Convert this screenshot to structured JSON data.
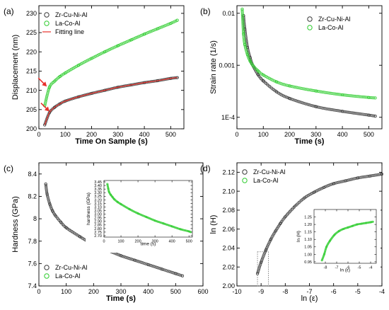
{
  "colors": {
    "zr": "#3a3a3a",
    "la": "#2ecc2e",
    "fit": "#e8302a",
    "arrow": "#e8302a"
  },
  "chart_data": [
    {
      "panel_label": "(a)",
      "type": "line",
      "xlabel": "Time On Sample (s)",
      "ylabel": "Displacement (nm)",
      "xlim": [
        0,
        550
      ],
      "ylim": [
        200,
        232
      ],
      "xticks": [
        0,
        100,
        200,
        300,
        400,
        500
      ],
      "yticks": [
        200,
        205,
        210,
        215,
        220,
        225,
        230
      ],
      "legend_position": "top-left",
      "series": [
        {
          "name": "Zr-Cu-Ni-Al",
          "style": "open-circles",
          "color": "#3a3a3a",
          "x": [
            22,
            40,
            60,
            80,
            100,
            150,
            200,
            250,
            300,
            350,
            400,
            450,
            500,
            525
          ],
          "y": [
            201,
            204.2,
            205.6,
            206.5,
            207.2,
            208.3,
            209.2,
            210.0,
            210.8,
            211.4,
            212.0,
            212.5,
            213.1,
            213.3
          ]
        },
        {
          "name": "La-Co-Al",
          "style": "open-circles",
          "color": "#2ecc2e",
          "x": [
            22,
            40,
            60,
            80,
            100,
            150,
            200,
            250,
            300,
            350,
            400,
            450,
            500,
            525
          ],
          "y": [
            206,
            210.8,
            212.4,
            213.6,
            214.5,
            216.5,
            218.3,
            220.0,
            221.6,
            223.1,
            224.6,
            226.0,
            227.4,
            228.2
          ]
        },
        {
          "name": "Fitting line",
          "style": "line",
          "color": "#e8302a",
          "x": [
            22,
            40,
            60,
            80,
            100,
            150,
            200,
            250,
            300,
            350,
            400,
            450,
            500,
            525
          ],
          "y": [
            201,
            204.2,
            205.6,
            206.5,
            207.2,
            208.3,
            209.2,
            210.0,
            210.8,
            211.4,
            212.0,
            212.5,
            213.1,
            213.3
          ]
        }
      ],
      "annotations": [
        {
          "type": "arrow",
          "x": 30,
          "y": 211,
          "color": "#e8302a"
        },
        {
          "type": "arrow",
          "x": 40,
          "y": 204.5,
          "color": "#e8302a"
        }
      ]
    },
    {
      "panel_label": "(b)",
      "type": "line",
      "xlabel": "Time (s)",
      "ylabel": "Strain rate (1/s)",
      "xlim": [
        0,
        550
      ],
      "ylim": [
        6e-05,
        0.014
      ],
      "yscale": "log",
      "xticks": [
        0,
        100,
        200,
        300,
        400,
        500
      ],
      "yticks": [
        0.0001,
        0.001,
        0.01
      ],
      "ytick_labels": [
        "1E-4",
        "0.001",
        "0.01"
      ],
      "legend_position": "top-right",
      "series": [
        {
          "name": "Zr-Cu-Ni-Al",
          "style": "open-circles",
          "color": "#3a3a3a",
          "x": [
            25,
            30,
            40,
            50,
            60,
            80,
            100,
            150,
            200,
            300,
            400,
            500,
            525
          ],
          "y": [
            0.009,
            0.005,
            0.0022,
            0.0014,
            0.001,
            0.00066,
            0.0005,
            0.00031,
            0.00023,
            0.00016,
            0.00013,
            0.00011,
            0.000105
          ]
        },
        {
          "name": "La-Co-Al",
          "style": "open-circles",
          "color": "#2ecc2e",
          "x": [
            20,
            25,
            30,
            40,
            50,
            60,
            80,
            100,
            150,
            200,
            300,
            400,
            500,
            525
          ],
          "y": [
            0.012,
            0.004,
            0.0025,
            0.0016,
            0.0012,
            0.001,
            0.00078,
            0.00065,
            0.00048,
            0.0004,
            0.00032,
            0.00027,
            0.00024,
            0.000235
          ]
        }
      ]
    },
    {
      "panel_label": "(c)",
      "type": "line",
      "xlabel": "Time (s)",
      "ylabel": "Hardness (GPa)",
      "xlim": [
        0,
        600
      ],
      "ylim": [
        7.4,
        8.5
      ],
      "xticks": [
        0,
        100,
        200,
        300,
        400,
        500,
        600
      ],
      "yticks": [
        7.4,
        7.6,
        7.8,
        8.0,
        8.2,
        8.4
      ],
      "legend_position": "bottom-left",
      "series": [
        {
          "name": "Zr-Cu-Ni-Al",
          "style": "open-circles",
          "color": "#3a3a3a",
          "x": [
            25,
            30,
            40,
            50,
            60,
            80,
            100,
            150,
            200,
            250,
            300,
            350,
            400,
            450,
            500,
            525
          ],
          "y": [
            8.31,
            8.22,
            8.13,
            8.07,
            8.03,
            7.97,
            7.92,
            7.84,
            7.77,
            7.72,
            7.67,
            7.63,
            7.59,
            7.55,
            7.51,
            7.49
          ]
        }
      ],
      "inset": {
        "xlabel": "time (s)",
        "ylabel": "hardness (GPa)",
        "xlim": [
          0,
          520
        ],
        "ylim": [
          2.68,
          3.47
        ],
        "xticks": [
          0,
          100,
          200,
          300,
          400,
          500
        ],
        "yticks": [
          2.7,
          2.75,
          2.8,
          2.85,
          2.9,
          2.95,
          3.0,
          3.05,
          3.1,
          3.15,
          3.2,
          3.25,
          3.3,
          3.35,
          3.4,
          3.45
        ],
        "yticklabels": [
          "2.70",
          "2.75",
          "2.80",
          "2.85",
          "2.90",
          "2.95",
          "3.00",
          "3.05",
          "3.10",
          "3.15",
          "3.20",
          "3.25",
          "3.30",
          "3.35",
          "3.40",
          "3.45"
        ],
        "series": [
          {
            "name": "La-Co-Al",
            "style": "open-circles",
            "color": "#2ecc2e",
            "x": [
              20,
              25,
              30,
              40,
              50,
              60,
              80,
              100,
              150,
              200,
              250,
              300,
              350,
              400,
              450,
              500,
              510
            ],
            "y": [
              3.42,
              3.36,
              3.31,
              3.27,
              3.24,
              3.21,
              3.17,
              3.14,
              3.07,
              3.01,
              2.96,
              2.91,
              2.87,
              2.83,
              2.79,
              2.76,
              2.75
            ]
          }
        ]
      }
    },
    {
      "panel_label": "(d)",
      "type": "line",
      "xlabel": "ln (ε)",
      "ylabel": "ln (H)",
      "xlim": [
        -10,
        -4
      ],
      "ylim": [
        2.0,
        2.13
      ],
      "xticks": [
        -10,
        -9,
        -8,
        -7,
        -6,
        -5,
        -4
      ],
      "yticks": [
        2.0,
        2.02,
        2.04,
        2.06,
        2.08,
        2.1,
        2.12
      ],
      "yticklabels": [
        "2.00",
        "2.02",
        "2.04",
        "2.06",
        "2.08",
        "2.10",
        "2.12"
      ],
      "legend_position": "top-left",
      "series": [
        {
          "name": "Zr-Cu-Ni-Al",
          "style": "open-circles",
          "color": "#3a3a3a",
          "x": [
            -9.15,
            -9.0,
            -8.8,
            -8.6,
            -8.4,
            -8.2,
            -8.0,
            -7.6,
            -7.2,
            -6.8,
            -6.4,
            -6.0,
            -5.5,
            -5.0,
            -4.5,
            -4.0
          ],
          "y": [
            2.013,
            2.025,
            2.038,
            2.049,
            2.058,
            2.066,
            2.073,
            2.084,
            2.093,
            2.099,
            2.104,
            2.108,
            2.111,
            2.114,
            2.116,
            2.118
          ]
        }
      ],
      "inset": {
        "xlabel": "ln (ε)",
        "ylabel": "ln (H)",
        "xlim": [
          -9,
          -3.5
        ],
        "ylim": [
          0.94,
          1.3
        ],
        "xticks": [
          -8,
          -7,
          -6,
          -5,
          -4
        ],
        "yticks": [
          0.95,
          1.0,
          1.05,
          1.1,
          1.15,
          1.2,
          1.25
        ],
        "yticklabels": [
          "0.95",
          "1.00",
          "1.05",
          "1.10",
          "1.15",
          "1.20",
          "1.25"
        ],
        "series": [
          {
            "name": "La-Co-Al",
            "style": "open-circles",
            "color": "#2ecc2e",
            "x": [
              -8.3,
              -8.1,
              -7.9,
              -7.6,
              -7.2,
              -6.8,
              -6.4,
              -6.0,
              -5.6,
              -5.2,
              -4.8,
              -4.4,
              -4.0,
              -3.8
            ],
            "y": [
              0.96,
              1.0,
              1.05,
              1.09,
              1.13,
              1.155,
              1.17,
              1.18,
              1.19,
              1.2,
              1.205,
              1.21,
              1.215,
              1.218
            ]
          }
        ]
      }
    }
  ],
  "legends": [
    {
      "entries": [
        {
          "name": "Zr-Cu-Ni-Al"
        },
        {
          "name": "La-Co-Al"
        },
        {
          "name": "Fitting line"
        }
      ]
    },
    {
      "entries": [
        {
          "name": "Zr-Cu-Ni-Al"
        },
        {
          "name": "La-Co-Al"
        }
      ]
    },
    {
      "entries": [
        {
          "name": "Zr-Cu-Ni-Al"
        },
        {
          "name": "La-Co-Al"
        }
      ]
    },
    {
      "entries": [
        {
          "name": "Zr-Cu-Ni-Al"
        },
        {
          "name": "La-Co-Al"
        }
      ]
    }
  ]
}
